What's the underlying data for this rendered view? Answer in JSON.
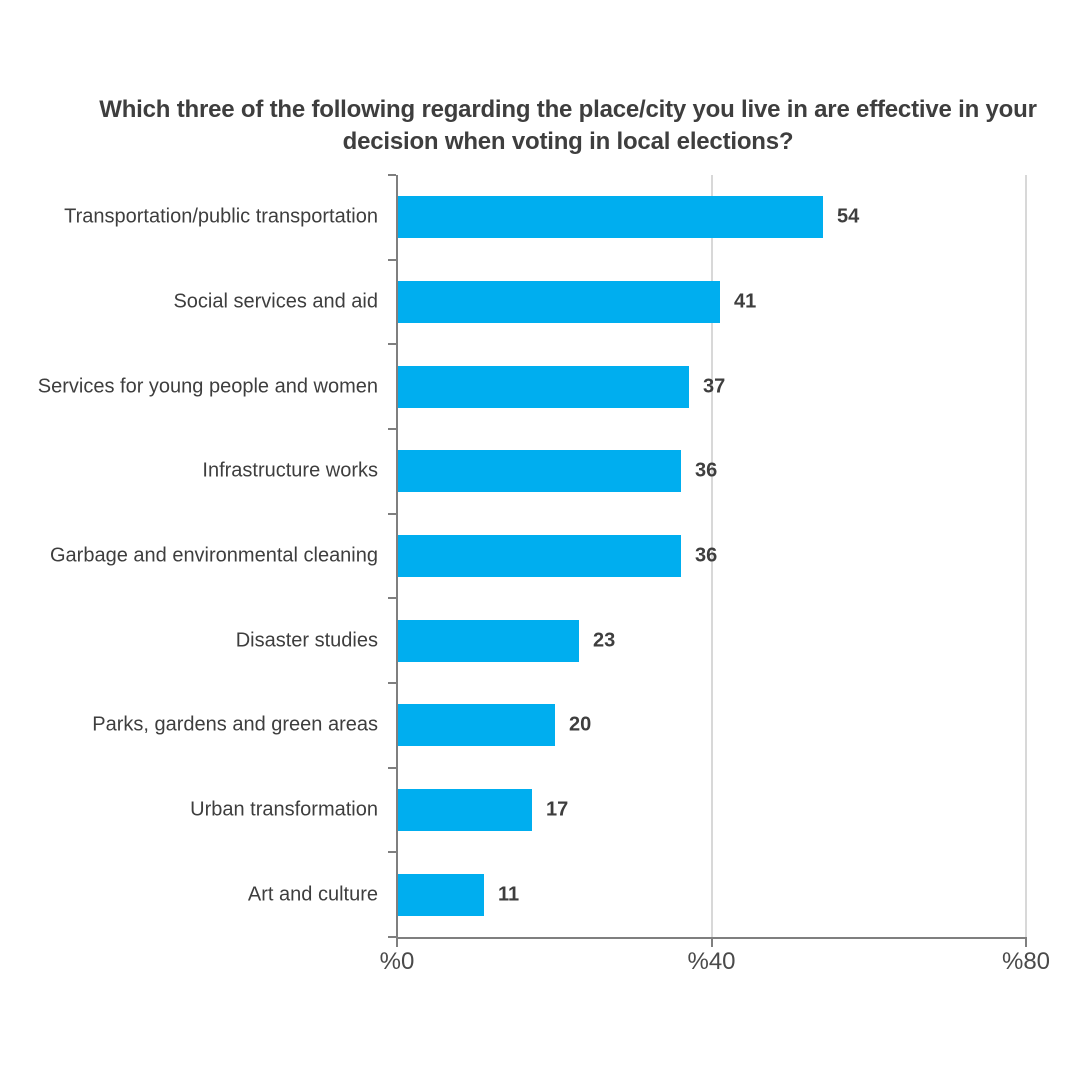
{
  "title": {
    "text": "Which three of the following regarding the place/city you live in are effective in your decision when voting in local elections?"
  },
  "chart_data": {
    "type": "bar",
    "orientation": "horizontal",
    "title": "Which three of the following regarding the place/city you live in are effective in your decision when voting in local elections?",
    "categories": [
      "Transportation/public transportation",
      "Social services and aid",
      "Services for young people and women",
      "Infrastructure works",
      "Garbage and environmental cleaning",
      "Disaster studies",
      "Parks, gardens and green areas",
      "Urban transformation",
      "Art and culture"
    ],
    "values": [
      54,
      41,
      37,
      36,
      36,
      23,
      20,
      17,
      11
    ],
    "value_labels": [
      "54",
      "41",
      "37",
      "36",
      "36",
      "23",
      "20",
      "17",
      "11"
    ],
    "xlabel": "",
    "ylabel": "",
    "xlim": [
      0,
      80
    ],
    "x_tick_values": [
      0,
      40,
      80
    ],
    "x_tick_labels": [
      "%0",
      "%40",
      "%80"
    ],
    "grid": "vertical-gridlines-at-40-and-80",
    "legend": "none",
    "bar_color": "#00aeef",
    "data_labels_shown": true
  },
  "colors": {
    "bar": "#00aeef",
    "text": "#3e3e3e",
    "axis": "#7f7f7f",
    "gridline": "#d8d8d8",
    "tick_label": "#4a4a4a",
    "background": "#ffffff"
  }
}
